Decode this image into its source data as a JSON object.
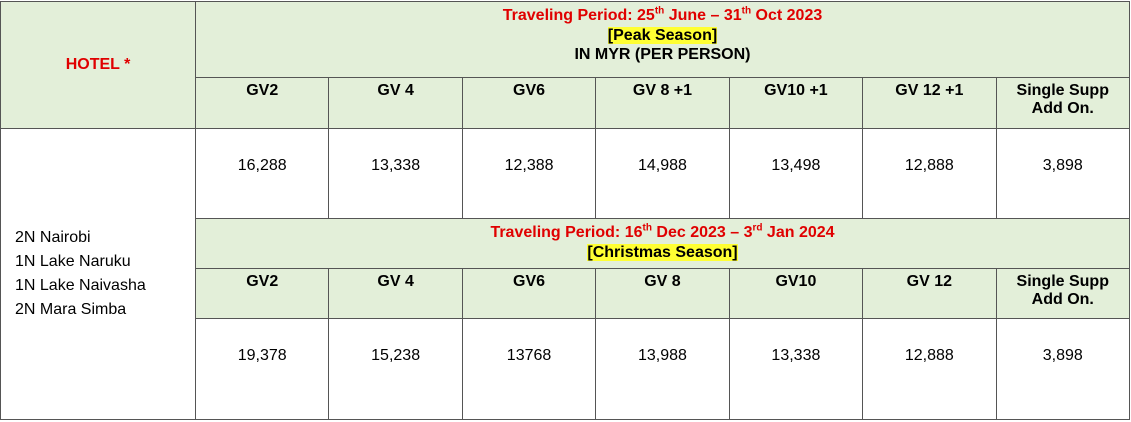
{
  "header": {
    "hotel": "HOTEL *"
  },
  "seasons": [
    {
      "period": [
        "Traveling Period: 25",
        "th",
        " June – 31",
        "th",
        " Oct 2023"
      ],
      "season": "[Peak Season]",
      "currency": "IN MYR (PER PERSON)",
      "columns": [
        "GV2",
        "GV 4",
        "GV6",
        "GV 8 +1",
        "GV10 +1",
        "GV 12 +1",
        "Single Supp Add On."
      ],
      "prices": [
        "16,288",
        "13,338",
        "12,388",
        "14,988",
        "13,498",
        "12,888",
        "3,898"
      ]
    },
    {
      "period": [
        "Traveling Period: 16",
        "th",
        " Dec 2023 – 3",
        "rd",
        " Jan 2024"
      ],
      "season": "[Christmas Season]",
      "columns": [
        "GV2",
        "GV 4",
        "GV6",
        "GV 8",
        "GV10",
        "GV 12",
        "Single Supp Add On."
      ],
      "prices": [
        "19,378",
        "15,238",
        "13768",
        "13,988",
        "13,338",
        "12,888",
        "3,898"
      ]
    }
  ],
  "hotels": [
    "2N Nairobi",
    "1N Lake Naruku",
    "1N Lake Naivasha",
    "2N Mara Simba"
  ]
}
